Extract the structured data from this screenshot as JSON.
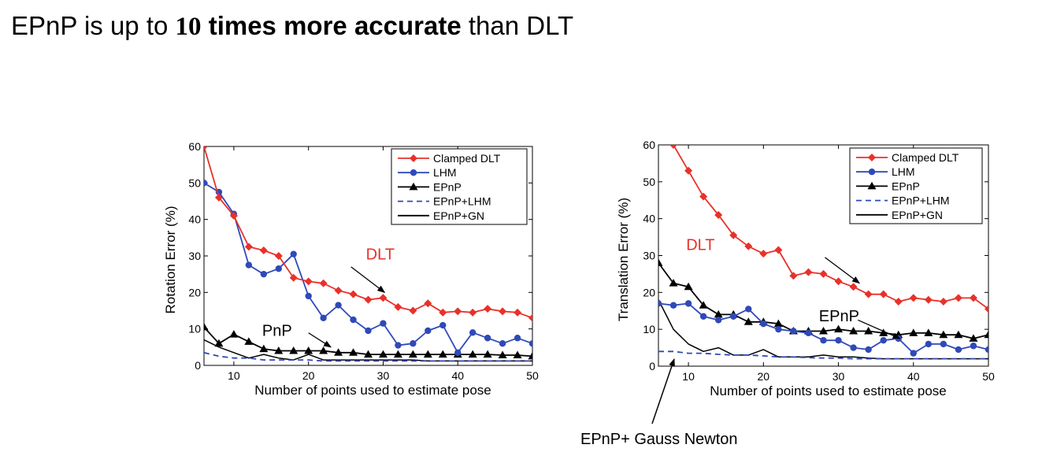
{
  "title": {
    "prefix": "EPnP is up to ",
    "num": "10",
    "bold": " times more accurate",
    "suffix": " than DLT"
  },
  "colors": {
    "clamped_dlt": "#e8312a",
    "lhm": "#2f49b8",
    "epnp": "#000000",
    "epnp_lhm": "#2f49b8",
    "epnp_gn": "#000000",
    "dlt_annotation": "#e8312a"
  },
  "chart_data": [
    {
      "type": "line",
      "xlabel": "Number of points used to estimate pose",
      "ylabel": "Rotation Error (%)",
      "xlim": [
        6,
        50
      ],
      "ylim": [
        0,
        60
      ],
      "xticks": [
        10,
        20,
        30,
        40,
        50
      ],
      "yticks": [
        0,
        10,
        20,
        30,
        40,
        50,
        60
      ],
      "legend_position": "top-right",
      "series": [
        {
          "name": "Clamped DLT",
          "marker": "diamond",
          "x": [
            6,
            8,
            10,
            12,
            14,
            16,
            18,
            20,
            22,
            24,
            26,
            28,
            30,
            32,
            34,
            36,
            38,
            40,
            42,
            44,
            46,
            48,
            50
          ],
          "y": [
            60,
            46,
            41,
            32.5,
            31.5,
            30,
            24,
            23,
            22.5,
            20.5,
            19.5,
            18,
            18.5,
            16,
            15,
            17,
            14.5,
            14.8,
            14.5,
            15.5,
            14.8,
            14.5,
            13
          ]
        },
        {
          "name": "LHM",
          "marker": "circle",
          "x": [
            6,
            8,
            10,
            12,
            14,
            16,
            18,
            20,
            22,
            24,
            26,
            28,
            30,
            32,
            34,
            36,
            38,
            40,
            42,
            44,
            46,
            48,
            50
          ],
          "y": [
            50,
            47.5,
            41.5,
            27.5,
            25,
            26.5,
            30.5,
            19,
            13,
            16.5,
            12.5,
            9.5,
            11.5,
            5.5,
            6,
            9.5,
            11,
            3.5,
            9,
            7.5,
            6,
            7.5,
            6
          ]
        },
        {
          "name": "EPnP",
          "marker": "triangle",
          "x": [
            6,
            8,
            10,
            12,
            14,
            16,
            18,
            20,
            22,
            24,
            26,
            28,
            30,
            32,
            34,
            36,
            38,
            40,
            42,
            44,
            46,
            48,
            50
          ],
          "y": [
            10.5,
            6,
            8.5,
            6.5,
            4.5,
            4,
            4,
            4,
            4,
            3.5,
            3.5,
            3,
            3,
            3,
            3,
            3,
            3,
            3,
            3,
            3,
            2.8,
            2.8,
            2.5
          ]
        },
        {
          "name": "EPnP+LHM",
          "marker": "none",
          "dash": true,
          "x": [
            6,
            8,
            10,
            12,
            14,
            16,
            18,
            20,
            22,
            24,
            26,
            28,
            30,
            32,
            34,
            36,
            38,
            40,
            42,
            44,
            46,
            48,
            50
          ],
          "y": [
            3.5,
            2.5,
            2,
            2,
            1.5,
            1.5,
            1.5,
            1.5,
            1.2,
            1.2,
            1.2,
            1.2,
            1.2,
            1.2,
            1.2,
            1.2,
            1.2,
            1.2,
            1.2,
            1.2,
            1.2,
            1.2,
            1.2
          ]
        },
        {
          "name": "EPnP+GN",
          "marker": "none",
          "x": [
            6,
            8,
            10,
            12,
            14,
            16,
            18,
            20,
            22,
            24,
            26,
            28,
            30,
            32,
            34,
            36,
            38,
            40,
            42,
            44,
            46,
            48,
            50
          ],
          "y": [
            7,
            5,
            3.5,
            2,
            3,
            2,
            1.5,
            3,
            1.5,
            1.5,
            1.5,
            1.5,
            1.5,
            1.5,
            1.5,
            1.2,
            1.2,
            1.2,
            1.2,
            1.2,
            1.2,
            1.2,
            1.2
          ]
        }
      ],
      "annotations": [
        {
          "text": "DLT",
          "color": "dlt",
          "text_at": [
            27.7,
            29
          ],
          "arrow_from": [
            25.7,
            27
          ],
          "arrow_to": [
            30.2,
            20
          ]
        },
        {
          "text": "PnP",
          "color": "black",
          "text_at": [
            13.8,
            8.1
          ],
          "arrow_from": [
            20,
            8.9
          ],
          "arrow_to": [
            23,
            5
          ]
        }
      ]
    },
    {
      "type": "line",
      "xlabel": "Number of points used to estimate pose",
      "ylabel": "Translation Error (%)",
      "xlim": [
        6,
        50
      ],
      "ylim": [
        0,
        60
      ],
      "xticks": [
        10,
        20,
        30,
        40,
        50
      ],
      "yticks": [
        0,
        10,
        20,
        30,
        40,
        50,
        60
      ],
      "legend_position": "top-right",
      "series": [
        {
          "name": "Clamped DLT",
          "marker": "diamond",
          "x": [
            8,
            10,
            12,
            14,
            16,
            18,
            20,
            22,
            24,
            26,
            28,
            30,
            32,
            34,
            36,
            38,
            40,
            42,
            44,
            46,
            48,
            50
          ],
          "y": [
            60,
            53,
            46,
            41,
            35.5,
            32.5,
            30.5,
            31.5,
            24.5,
            25.5,
            25,
            23,
            21.5,
            19.5,
            19.5,
            17.5,
            18.5,
            18,
            17.5,
            18.5,
            18.5,
            15.5
          ]
        },
        {
          "name": "LHM",
          "marker": "circle",
          "x": [
            6,
            8,
            10,
            12,
            14,
            16,
            18,
            20,
            22,
            24,
            26,
            28,
            30,
            32,
            34,
            36,
            38,
            40,
            42,
            44,
            46,
            48,
            50
          ],
          "y": [
            17,
            16.5,
            17,
            13.5,
            12.5,
            13.5,
            15.5,
            11.5,
            10,
            9.5,
            9,
            7,
            7,
            5,
            4.5,
            7,
            7.5,
            3.5,
            6,
            6,
            4.5,
            5.5,
            4.5
          ]
        },
        {
          "name": "EPnP",
          "marker": "triangle",
          "x": [
            6,
            8,
            10,
            12,
            14,
            16,
            18,
            20,
            22,
            24,
            26,
            28,
            30,
            32,
            34,
            36,
            38,
            40,
            42,
            44,
            46,
            48,
            50
          ],
          "y": [
            28,
            22.5,
            21.5,
            16.5,
            14,
            14,
            12,
            12,
            11.5,
            9.5,
            9.5,
            9.5,
            10,
            9.5,
            9.5,
            9,
            8.5,
            9,
            9,
            8.5,
            8.5,
            7.5,
            8.5
          ]
        },
        {
          "name": "EPnP+LHM",
          "marker": "none",
          "dash": true,
          "x": [
            6,
            8,
            10,
            12,
            14,
            16,
            18,
            20,
            22,
            24,
            26,
            28,
            30,
            32,
            34,
            36,
            38,
            40,
            42,
            44,
            46,
            48,
            50
          ],
          "y": [
            4,
            4,
            3.5,
            3.5,
            3.2,
            3,
            3,
            2.8,
            2.5,
            2.5,
            2.3,
            2.2,
            2.2,
            2,
            2,
            2,
            2,
            2,
            2,
            2,
            2,
            2,
            2
          ]
        },
        {
          "name": "EPnP+GN",
          "marker": "none",
          "x": [
            6,
            7,
            8,
            10,
            12,
            14,
            16,
            18,
            20,
            22,
            24,
            26,
            28,
            30,
            32,
            34,
            36,
            38,
            40,
            42,
            44,
            46,
            48,
            50
          ],
          "y": [
            18,
            14,
            10,
            6,
            4,
            5,
            3,
            3,
            4.5,
            2.5,
            2.5,
            2.5,
            3,
            2.5,
            2.5,
            2.2,
            2,
            2,
            2,
            2,
            2,
            2,
            2,
            2
          ]
        }
      ],
      "annotations": [
        {
          "text": "DLT",
          "color": "dlt",
          "text_at": [
            9.7,
            31.5
          ],
          "arrow_from": [
            28.2,
            29.5
          ],
          "arrow_to": [
            32.8,
            22.5
          ]
        },
        {
          "text": "EPnP",
          "color": "black",
          "text_at": [
            27.4,
            12.2
          ],
          "arrow_from": [
            32.6,
            12.5
          ],
          "arrow_to": [
            38.2,
            7.5
          ]
        }
      ]
    }
  ],
  "footer_annotation": "EPnP+ Gauss Newton"
}
